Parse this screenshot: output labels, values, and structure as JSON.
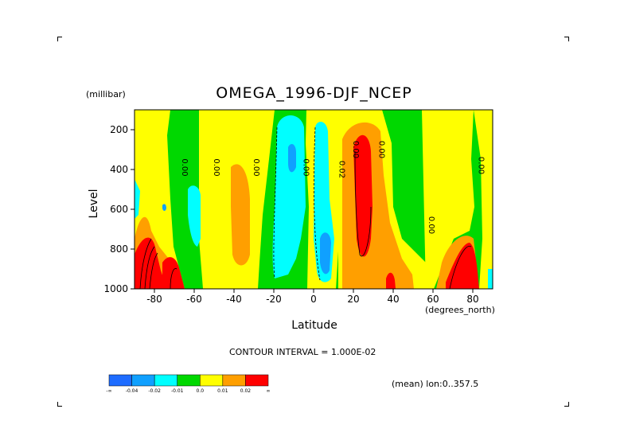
{
  "chart_data": {
    "type": "heatmap",
    "title": "OMEGA_1996-DJF_NCEP",
    "ylabel": "Level",
    "yunit": "(millibar)",
    "xlabel": "Latitude",
    "xunit": "(degrees_north)",
    "x_range": [
      -90,
      90
    ],
    "y_range": [
      100,
      1000
    ],
    "y_inverted": true,
    "x_ticks": [
      "-80",
      "-60",
      "-40",
      "-20",
      "0",
      "20",
      "40",
      "60",
      "80"
    ],
    "y_ticks": [
      "200",
      "400",
      "600",
      "800",
      "1000"
    ],
    "contour_interval_text": "CONTOUR INTERVAL = 1.000E-02",
    "mean_text": "(mean) lon:0..357.5",
    "contour_labels": [
      "0.00",
      "0.00",
      "0.00",
      "0.00",
      "0.02",
      "0.00",
      "0.00",
      "0.00",
      "0.00"
    ],
    "colorbar": {
      "colors": [
        "#1e6cff",
        "#10a0ff",
        "#00ffff",
        "#00d800",
        "#ffff00",
        "#ff9f00",
        "#ff0000"
      ],
      "labels": [
        "-∞",
        "-0.04",
        "-0.02",
        "-0.01",
        "0.0",
        "0.01",
        "0.02",
        "∞"
      ]
    }
  }
}
